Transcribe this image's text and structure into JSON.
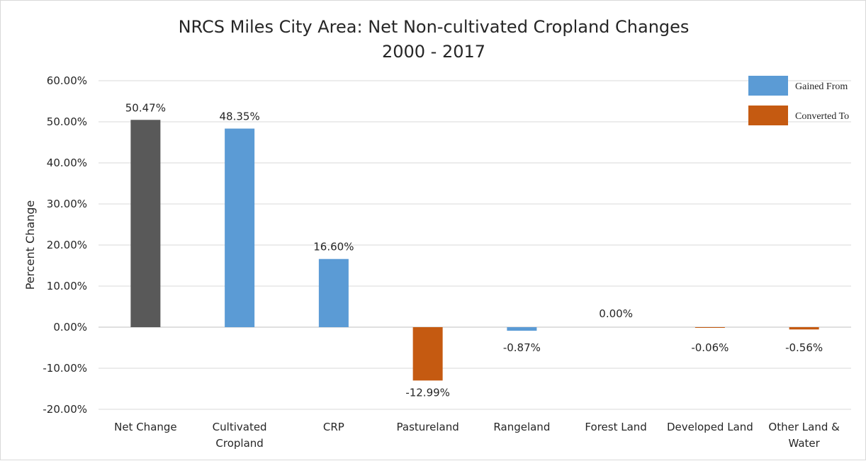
{
  "chart_data": {
    "type": "bar",
    "title_lines": [
      "NRCS Miles City Area: Net Non-cultivated Cropland Changes",
      "2000 - 2017"
    ],
    "ylabel": "Percent Change",
    "xlabel": "",
    "ylim": [
      -20,
      60
    ],
    "yticks": [
      60,
      50,
      40,
      30,
      20,
      10,
      0,
      -10,
      -20
    ],
    "ytick_labels": [
      "60.00%",
      "50.00%",
      "40.00%",
      "30.00%",
      "20.00%",
      "10.00%",
      "0.00%",
      "-10.00%",
      "-20.00%"
    ],
    "grid": true,
    "legend_position": "top-right",
    "legend": [
      {
        "name": "Gained From",
        "color": "#5b9bd5"
      },
      {
        "name": "Converted To",
        "color": "#c55a11"
      }
    ],
    "categories": [
      [
        "Net Change"
      ],
      [
        "Cultivated",
        "Cropland"
      ],
      [
        "CRP"
      ],
      [
        "Pastureland"
      ],
      [
        "Rangeland"
      ],
      [
        "Forest Land"
      ],
      [
        "Developed Land"
      ],
      [
        "Other Land &",
        "Water"
      ]
    ],
    "values": [
      50.47,
      48.35,
      16.6,
      -12.99,
      -0.87,
      0.0,
      -0.06,
      -0.56
    ],
    "value_labels": [
      "50.47%",
      "48.35%",
      "16.60%",
      "-12.99%",
      "-0.87%",
      "0.00%",
      "-0.06%",
      "-0.56%"
    ],
    "colors": [
      "#595959",
      "#5b9bd5",
      "#5b9bd5",
      "#c55a11",
      "#5b9bd5",
      "#5b9bd5",
      "#c55a11",
      "#c55a11"
    ]
  }
}
